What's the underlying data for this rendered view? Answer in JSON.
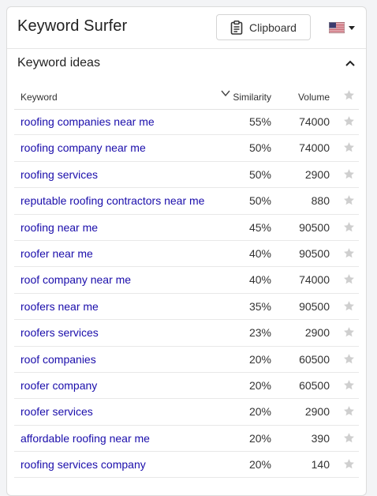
{
  "header": {
    "title": "Keyword Surfer",
    "clipboard_label": "Clipboard",
    "country_flag": "us-flag-icon"
  },
  "section": {
    "title": "Keyword ideas",
    "toggle_icon": "chevron-up-icon"
  },
  "table": {
    "columns": {
      "keyword": "Keyword",
      "similarity": "Similarity",
      "volume": "Volume"
    },
    "rows": [
      {
        "keyword": "roofing companies near me",
        "similarity": "55%",
        "volume": "74000"
      },
      {
        "keyword": "roofing company near me",
        "similarity": "50%",
        "volume": "74000"
      },
      {
        "keyword": "roofing services",
        "similarity": "50%",
        "volume": "2900"
      },
      {
        "keyword": "reputable roofing contractors near me",
        "similarity": "50%",
        "volume": "880"
      },
      {
        "keyword": "roofing near me",
        "similarity": "45%",
        "volume": "90500"
      },
      {
        "keyword": "roofer near me",
        "similarity": "40%",
        "volume": "90500"
      },
      {
        "keyword": "roof company near me",
        "similarity": "40%",
        "volume": "74000"
      },
      {
        "keyword": "roofers near me",
        "similarity": "35%",
        "volume": "90500"
      },
      {
        "keyword": "roofers services",
        "similarity": "23%",
        "volume": "2900"
      },
      {
        "keyword": "roof companies",
        "similarity": "20%",
        "volume": "60500"
      },
      {
        "keyword": "roofer company",
        "similarity": "20%",
        "volume": "60500"
      },
      {
        "keyword": "roofer services",
        "similarity": "20%",
        "volume": "2900"
      },
      {
        "keyword": "affordable roofing near me",
        "similarity": "20%",
        "volume": "390"
      },
      {
        "keyword": "roofing services company",
        "similarity": "20%",
        "volume": "140"
      }
    ]
  },
  "colors": {
    "link": "#1a0dab",
    "star": "#cfcfcf",
    "text": "#333333"
  }
}
